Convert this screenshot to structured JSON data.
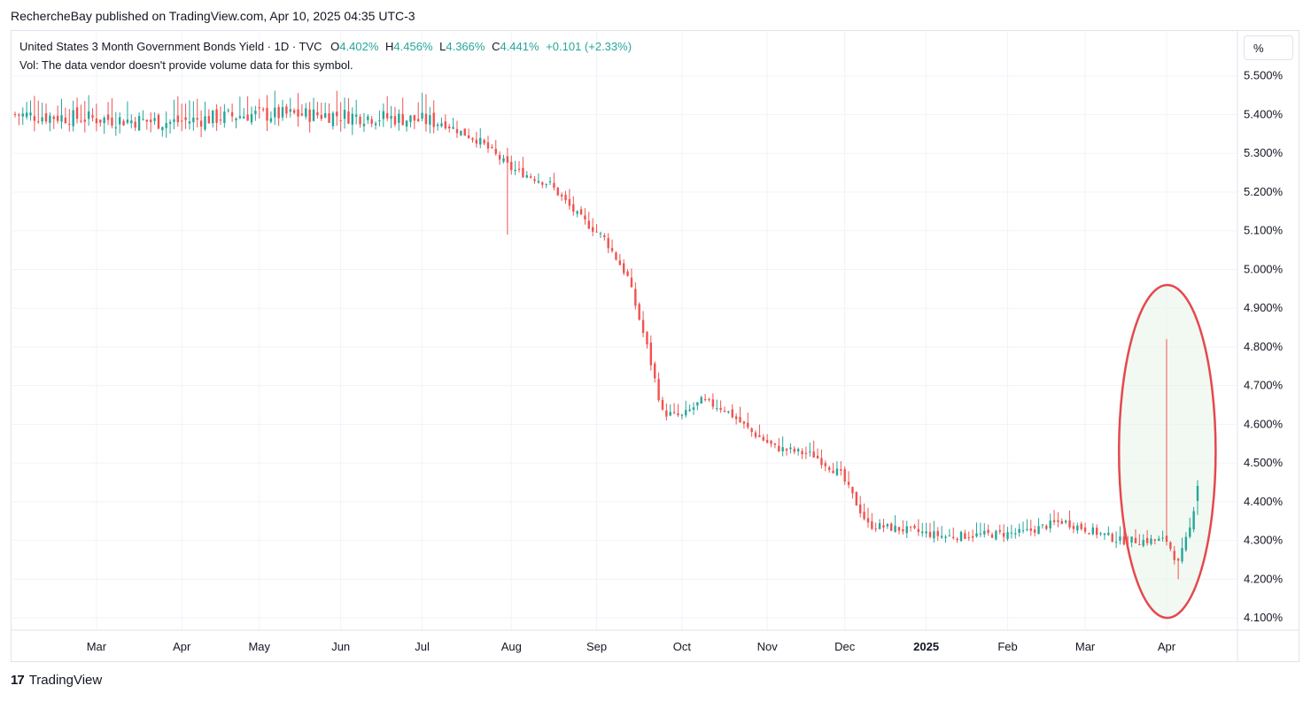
{
  "header": {
    "publisher_line": "RechercheBay published on TradingView.com, Apr 10, 2025 04:35 UTC-3"
  },
  "legend": {
    "symbol_line": "United States 3 Month Government Bonds Yield · 1D · TVC",
    "open_label": "O",
    "open_value": "4.402%",
    "high_label": "H",
    "high_value": "4.456%",
    "low_label": "L",
    "low_value": "4.366%",
    "close_label": "C",
    "close_value": "4.441%",
    "change": "+0.101 (+2.33%)",
    "volume_note": "Vol: The data vendor doesn't provide volume data for this symbol."
  },
  "unit_button": "%",
  "footer": {
    "logo_glyph": "17",
    "brand": "TradingView"
  },
  "colors": {
    "up": "#26a69a",
    "down": "#ef5350",
    "grid": "#f0f3fa",
    "highlight_fill": "#e8f5e9",
    "highlight_stroke": "#e5484d"
  },
  "chart_data": {
    "type": "candlestick",
    "title": "United States 3 Month Government Bonds Yield",
    "ylabel": "%",
    "ylim": [
      4.05,
      5.6
    ],
    "y_ticks": [
      "5.500%",
      "5.400%",
      "5.300%",
      "5.200%",
      "5.100%",
      "5.000%",
      "4.900%",
      "4.800%",
      "4.700%",
      "4.600%",
      "4.500%",
      "4.400%",
      "4.300%",
      "4.200%",
      "4.100%"
    ],
    "x_ticks": [
      "Mar",
      "Apr",
      "May",
      "Jun",
      "Jul",
      "Aug",
      "Sep",
      "Oct",
      "Nov",
      "Dec",
      "2025",
      "Feb",
      "Mar",
      "Apr"
    ],
    "x_tick_days": [
      21,
      43,
      63,
      84,
      105,
      128,
      150,
      172,
      194,
      214,
      235,
      256,
      276,
      297
    ],
    "bar_count": 306,
    "path": [
      {
        "day": 0,
        "close": 5.4
      },
      {
        "day": 20,
        "close": 5.39
      },
      {
        "day": 40,
        "close": 5.38
      },
      {
        "day": 60,
        "close": 5.4
      },
      {
        "day": 80,
        "close": 5.4
      },
      {
        "day": 100,
        "close": 5.39
      },
      {
        "day": 110,
        "close": 5.38
      },
      {
        "day": 120,
        "close": 5.33
      },
      {
        "day": 128,
        "close": 5.26
      },
      {
        "day": 138,
        "close": 5.22
      },
      {
        "day": 145,
        "close": 5.14
      },
      {
        "day": 152,
        "close": 5.08
      },
      {
        "day": 158,
        "close": 4.98
      },
      {
        "day": 163,
        "close": 4.8
      },
      {
        "day": 167,
        "close": 4.63
      },
      {
        "day": 172,
        "close": 4.62
      },
      {
        "day": 177,
        "close": 4.66
      },
      {
        "day": 183,
        "close": 4.64
      },
      {
        "day": 190,
        "close": 4.58
      },
      {
        "day": 196,
        "close": 4.54
      },
      {
        "day": 206,
        "close": 4.52
      },
      {
        "day": 213,
        "close": 4.47
      },
      {
        "day": 220,
        "close": 4.34
      },
      {
        "day": 228,
        "close": 4.33
      },
      {
        "day": 240,
        "close": 4.31
      },
      {
        "day": 260,
        "close": 4.32
      },
      {
        "day": 270,
        "close": 4.35
      },
      {
        "day": 285,
        "close": 4.3
      },
      {
        "day": 295,
        "close": 4.3
      },
      {
        "day": 297,
        "close": 4.3
      },
      {
        "day": 300,
        "close": 4.24
      },
      {
        "day": 303,
        "close": 4.33
      },
      {
        "day": 305,
        "close": 4.44
      }
    ],
    "notable_bars": [
      {
        "day": 127,
        "low": 5.09
      },
      {
        "day": 297,
        "high": 4.82
      },
      {
        "day": 300,
        "low": 4.2
      },
      {
        "day": 305,
        "open": 4.402,
        "high": 4.456,
        "low": 4.366,
        "close": 4.441
      }
    ],
    "annotation": {
      "shape": "ellipse",
      "around_days": [
        287,
        306
      ],
      "y_range": [
        4.1,
        4.96
      ]
    }
  }
}
